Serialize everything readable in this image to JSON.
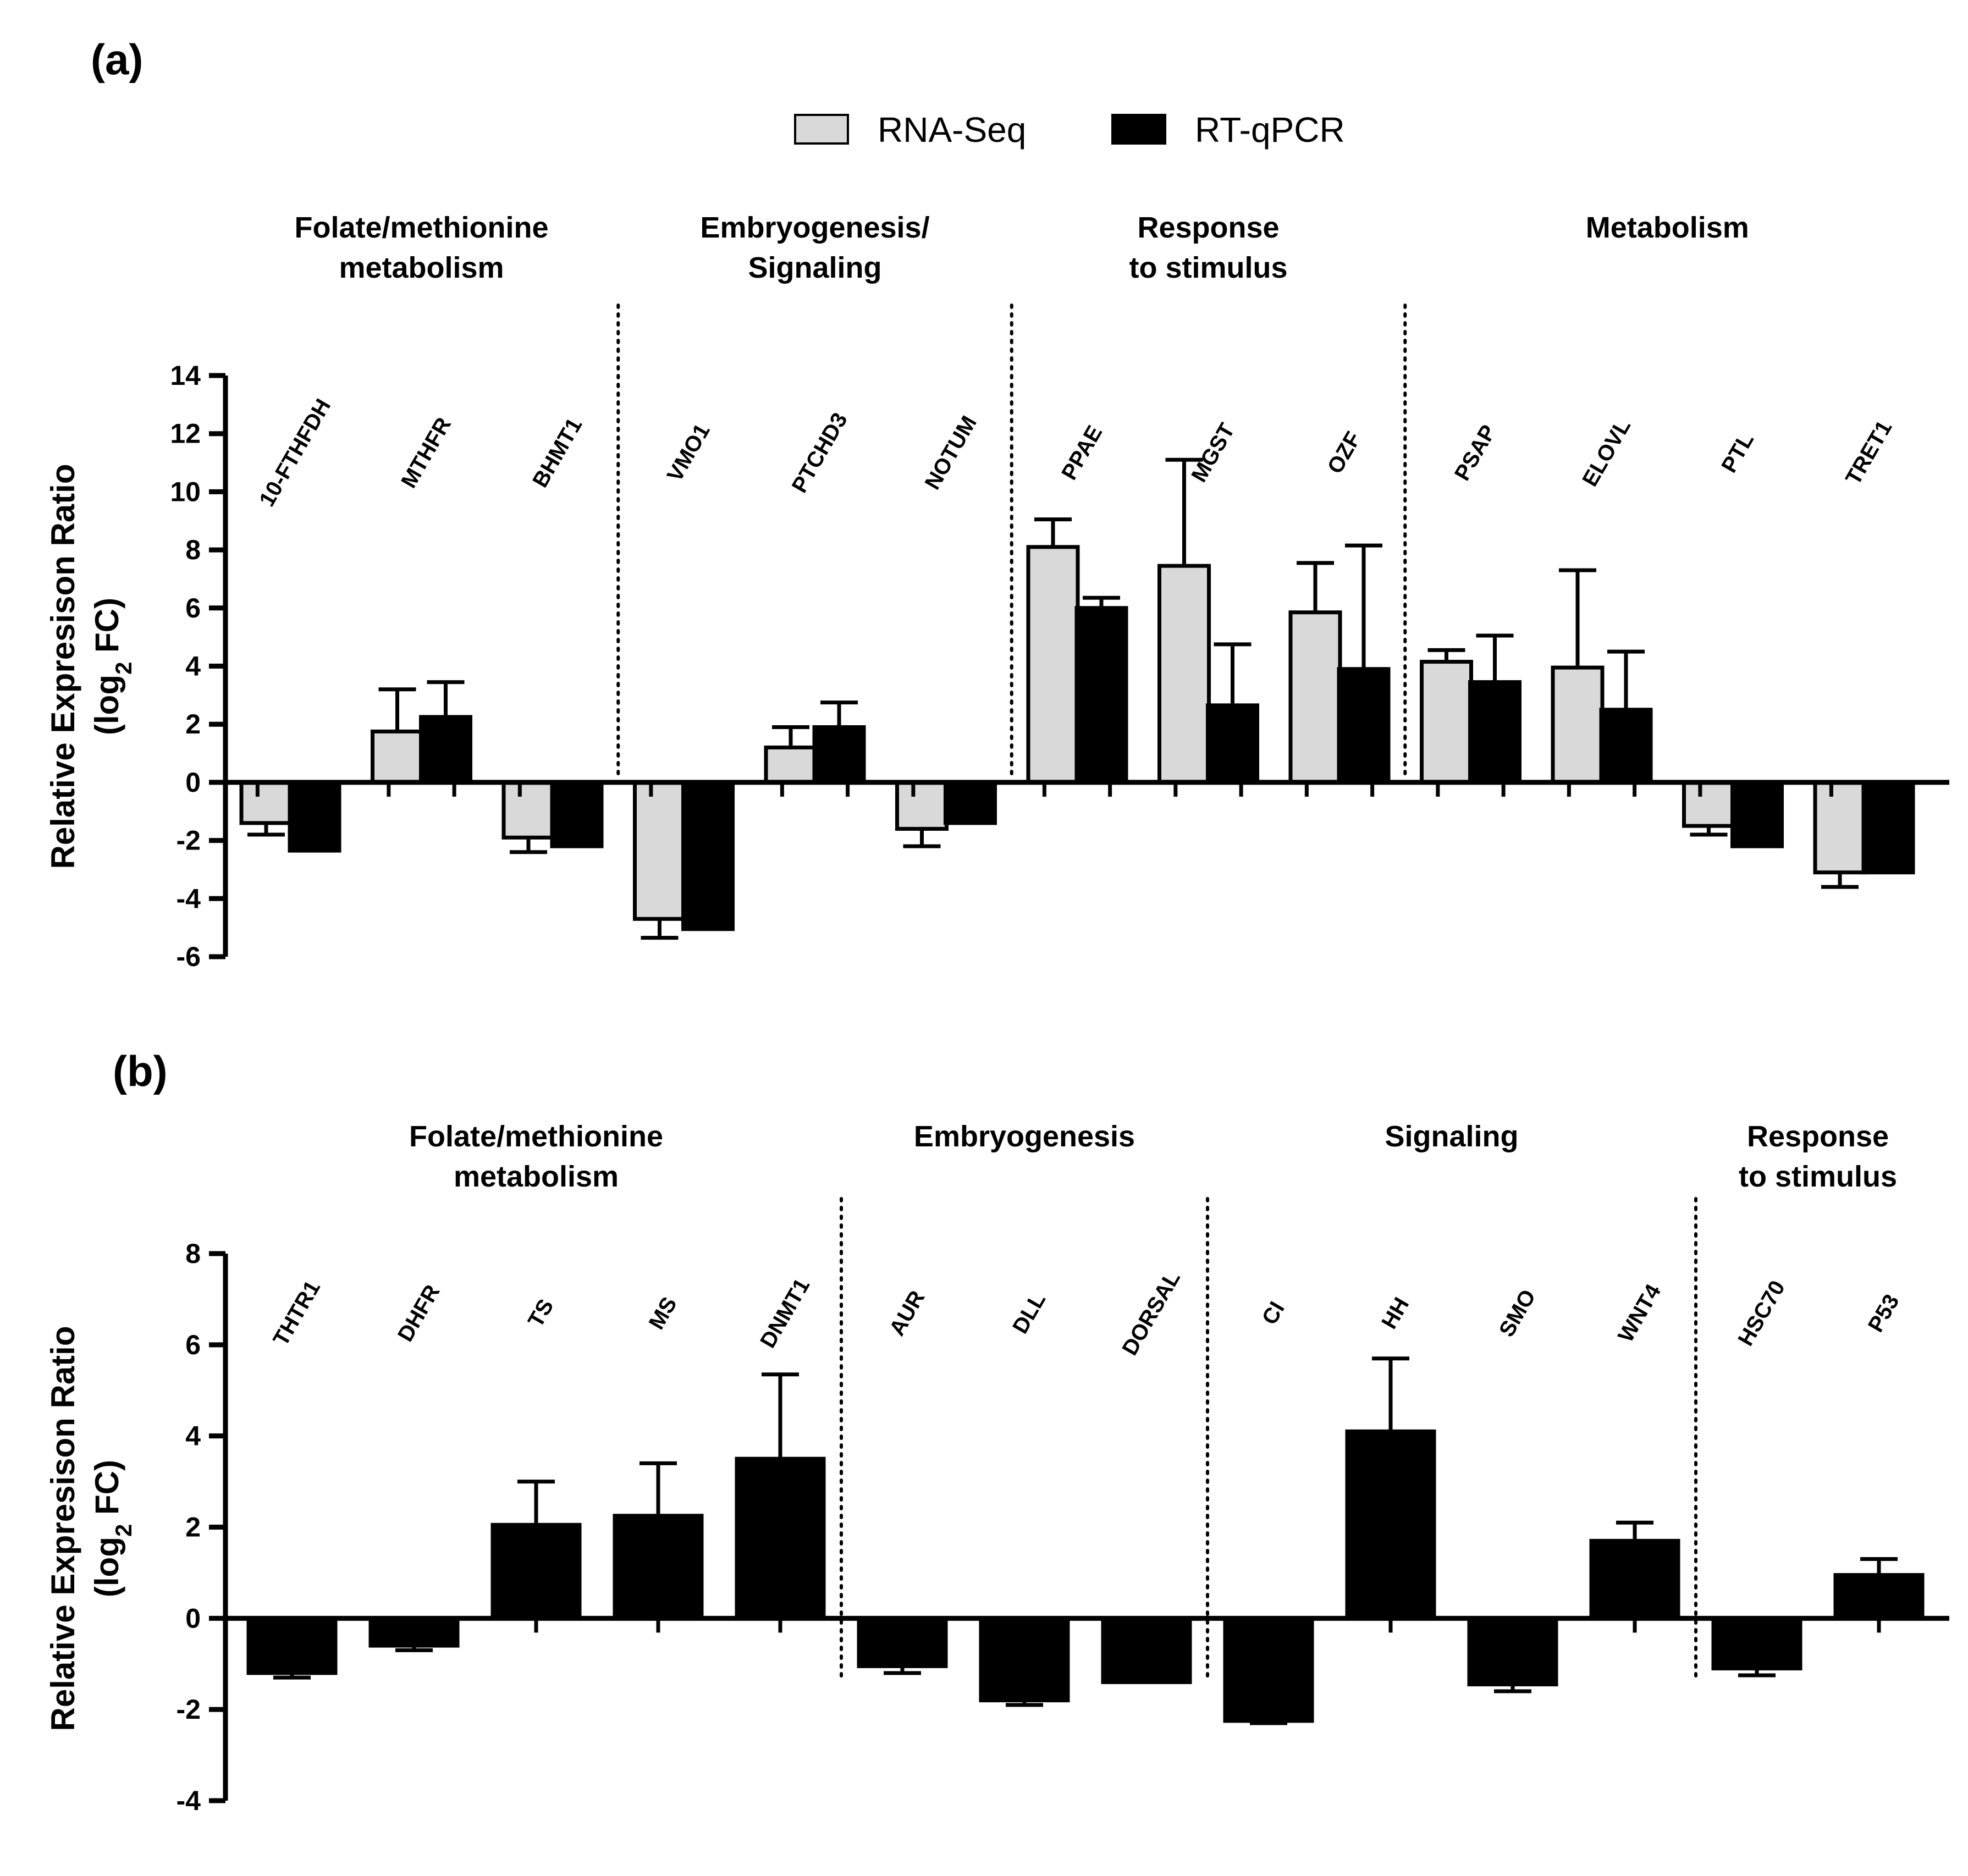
{
  "legend": {
    "items": [
      {
        "label": "RNA-Seq",
        "color": "#d9d9d9"
      },
      {
        "label": "RT-qPCR",
        "color": "#000000"
      }
    ]
  },
  "chart_data": [
    {
      "panel": "(a)",
      "type": "bar",
      "ylabel_line1": "Relative Expresison Ratio",
      "ylabel_line2": "(log",
      "ylabel_sub": "2",
      "ylabel_tail": " FC)",
      "ylim": [
        -6,
        14
      ],
      "yticks": [
        "-6",
        "-4",
        "-2",
        "0",
        "2",
        "4",
        "6",
        "8",
        "10",
        "12",
        "14"
      ],
      "categories": [
        "10-FTHFDH",
        "MTHFR",
        "BHMT1",
        "VMO1",
        "PTCHD3",
        "NOTUM",
        "PPAE",
        "MGST",
        "OZF",
        "PSAP",
        "ELOVL",
        "PTL",
        "TRET1"
      ],
      "groups": [
        {
          "name_lines": [
            "Folate/methionine",
            "metabolism"
          ],
          "start": 0,
          "end": 2
        },
        {
          "name_lines": [
            "Embryogenesis/",
            "Signaling"
          ],
          "start": 3,
          "end": 5
        },
        {
          "name_lines": [
            "Response",
            "to stimulus"
          ],
          "start": 6,
          "end": 8
        },
        {
          "name_lines": [
            "Metabolism"
          ],
          "start": 9,
          "end": 12
        }
      ],
      "series": [
        {
          "name": "RNA-Seq",
          "color": "#d9d9d9",
          "values": [
            -1.4,
            1.75,
            -1.9,
            -4.7,
            1.2,
            -1.6,
            8.1,
            7.45,
            5.85,
            4.15,
            3.95,
            -1.5,
            -3.1
          ],
          "errors": [
            0.4,
            1.45,
            0.5,
            0.65,
            0.7,
            0.6,
            0.95,
            3.65,
            1.7,
            0.4,
            3.35,
            0.3,
            0.5
          ]
        },
        {
          "name": "RT-qPCR",
          "color": "#000000",
          "values": [
            -2.35,
            2.25,
            -2.2,
            -5.05,
            1.9,
            -1.4,
            6.0,
            2.65,
            3.9,
            3.45,
            2.5,
            -2.2,
            -3.1
          ],
          "errors": [
            0.0,
            1.2,
            0.0,
            0.0,
            0.85,
            0.0,
            0.35,
            2.1,
            4.25,
            1.6,
            2.0,
            0.0,
            0.0
          ]
        }
      ]
    },
    {
      "panel": "(b)",
      "type": "bar",
      "ylabel_line1": "Relative Expresison Ratio",
      "ylabel_line2": "(log",
      "ylabel_sub": "2",
      "ylabel_tail": " FC)",
      "ylim": [
        -4,
        8
      ],
      "yticks": [
        "-4",
        "-2",
        "0",
        "2",
        "4",
        "6",
        "8"
      ],
      "categories": [
        "THTR1",
        "DHFR",
        "TS",
        "MS",
        "DNMT1",
        "AUR",
        "DLL",
        "DORSAL",
        "CI",
        "HH",
        "SMO",
        "WNT4",
        "HSC70",
        "P53"
      ],
      "groups": [
        {
          "name_lines": [
            "Folate/methionine",
            "metabolism"
          ],
          "start": 0,
          "end": 4
        },
        {
          "name_lines": [
            "Embryogenesis"
          ],
          "start": 5,
          "end": 7
        },
        {
          "name_lines": [
            "Signaling"
          ],
          "start": 8,
          "end": 11
        },
        {
          "name_lines": [
            "Response",
            "to stimulus"
          ],
          "start": 12,
          "end": 13
        }
      ],
      "series": [
        {
          "name": "RT-qPCR",
          "color": "#000000",
          "values": [
            -1.2,
            -0.6,
            2.05,
            2.25,
            3.5,
            -1.05,
            -1.8,
            -1.4,
            -2.25,
            4.1,
            -1.45,
            1.7,
            -1.1,
            0.95
          ],
          "errors": [
            0.1,
            0.1,
            0.95,
            1.15,
            1.85,
            0.15,
            0.1,
            0.0,
            0.05,
            1.6,
            0.15,
            0.4,
            0.15,
            0.35
          ]
        }
      ]
    }
  ]
}
